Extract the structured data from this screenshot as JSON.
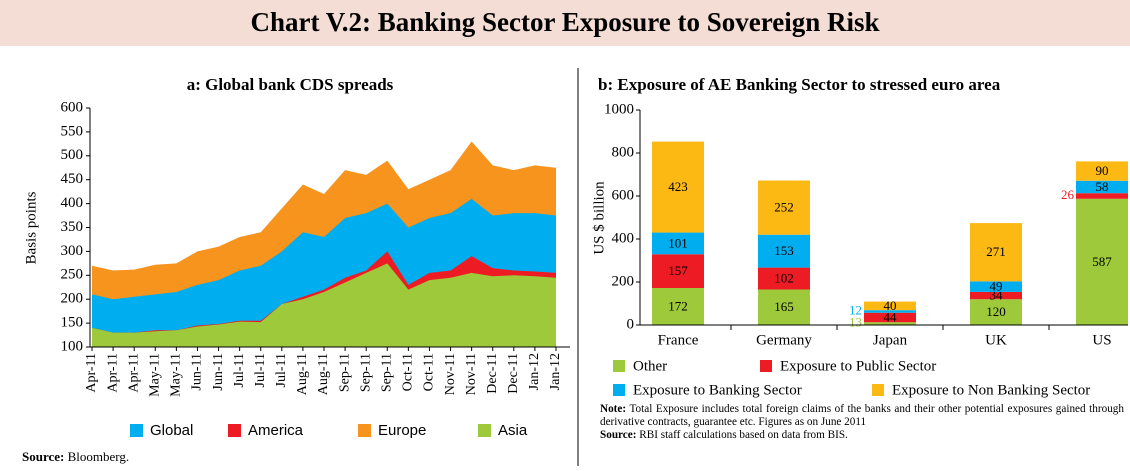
{
  "title": "Chart V.2: Banking Sector Exposure to Sovereign Risk",
  "chart_data": [
    {
      "type": "area",
      "title": "a:  Global bank CDS spreads",
      "y_label": "Basis points",
      "categories": [
        "Apr-11",
        "Apr-11",
        "Apr-11",
        "May-11",
        "May-11",
        "Jun-11",
        "Jun-11",
        "Jul-11",
        "Jul-11",
        "Jul-11",
        "Aug-11",
        "Aug-11",
        "Sep-11",
        "Sep-11",
        "Sep-11",
        "Oct-11",
        "Oct-11",
        "Nov-11",
        "Nov-11",
        "Dec-11",
        "Dec-11",
        "Jan-12",
        "Jan-12"
      ],
      "series": [
        {
          "name": "Global",
          "color": "#00aeef",
          "values": [
            210,
            200,
            205,
            210,
            215,
            230,
            240,
            260,
            270,
            300,
            340,
            330,
            370,
            380,
            400,
            350,
            370,
            380,
            410,
            375,
            380,
            380,
            375
          ]
        },
        {
          "name": "America",
          "color": "#ed1c24",
          "values": [
            140,
            130,
            130,
            135,
            135,
            145,
            148,
            155,
            155,
            190,
            205,
            220,
            245,
            260,
            300,
            230,
            255,
            260,
            290,
            265,
            260,
            258,
            255
          ]
        },
        {
          "name": "Europe",
          "color": "#f7941d",
          "values": [
            270,
            260,
            262,
            272,
            275,
            300,
            310,
            330,
            340,
            390,
            440,
            420,
            470,
            460,
            490,
            430,
            450,
            470,
            530,
            480,
            470,
            480,
            475
          ]
        },
        {
          "name": "Asia",
          "color": "#9dc93b",
          "values": [
            140,
            130,
            130,
            133,
            135,
            143,
            147,
            153,
            152,
            190,
            200,
            215,
            235,
            255,
            275,
            220,
            240,
            245,
            255,
            248,
            250,
            248,
            245
          ]
        }
      ],
      "ylim": [
        100,
        600
      ],
      "yticks": [
        100,
        150,
        200,
        250,
        300,
        350,
        400,
        450,
        500,
        550,
        600
      ],
      "source": {
        "label": "Source:",
        "text": "Bloomberg."
      }
    },
    {
      "type": "stacked_bar",
      "title": "b:  Exposure of AE Banking Sector to stressed euro area",
      "y_label": "US $ billion",
      "categories": [
        "France",
        "Germany",
        "Japan",
        "UK",
        "US"
      ],
      "series": [
        {
          "name": "Other",
          "color": "#9dc93b",
          "values": [
            172,
            165,
            13,
            120,
            587
          ]
        },
        {
          "name": "Exposure to Public Sector",
          "color": "#ed1c24",
          "values": [
            157,
            102,
            44,
            34,
            26
          ]
        },
        {
          "name": "Exposure to Banking Sector",
          "color": "#00aeef",
          "values": [
            101,
            153,
            12,
            49,
            58
          ]
        },
        {
          "name": "Exposure to Non Banking Sector",
          "color": "#fdb913",
          "values": [
            423,
            252,
            40,
            271,
            90
          ]
        }
      ],
      "ylim": [
        0,
        1000
      ],
      "yticks": [
        0,
        200,
        400,
        600,
        800,
        1000
      ],
      "note": {
        "label": "Note:",
        "text": "Total Exposure includes total foreign claims of the banks and their other potential exposures gained through derivative contracts, guarantee etc. Figures as on June 2011"
      },
      "source": {
        "label": "Source:",
        "text": "RBI staff calculations based on data from BIS."
      }
    }
  ]
}
